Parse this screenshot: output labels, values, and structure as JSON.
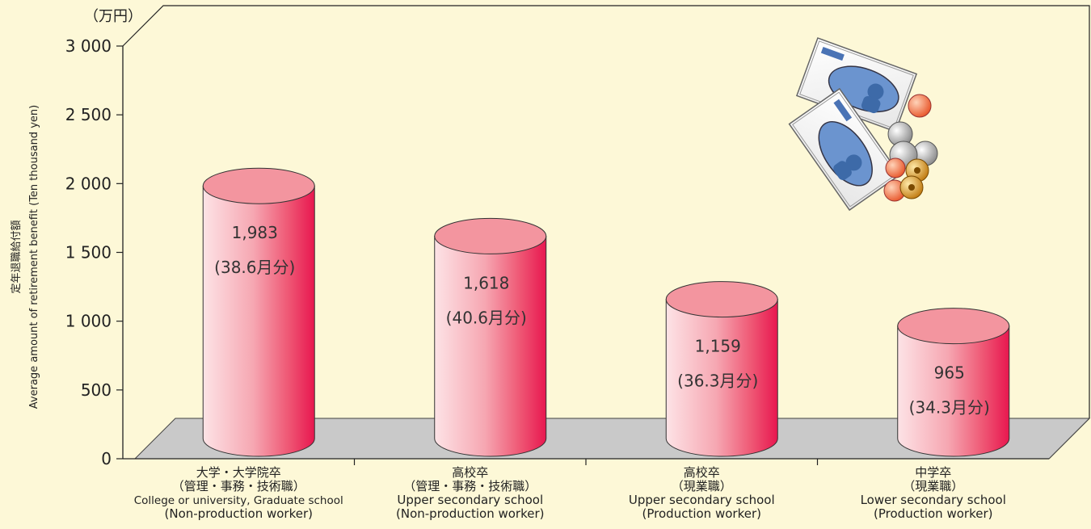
{
  "chart_data": {
    "type": "bar",
    "unit_label": "（万円）",
    "ylabel_jp": "定年退職給付額",
    "ylabel_en": "Average amount of retirement benefit (Ten thousand yen)",
    "ylim": [
      0,
      3000
    ],
    "yticks": [
      0,
      500,
      1000,
      1500,
      2000,
      2500,
      3000
    ],
    "ytick_labels": [
      "0",
      "500",
      "1 000",
      "1 500",
      "2 000",
      "2 500",
      "3 000"
    ],
    "categories": [
      {
        "jp": "大学・大学院卒",
        "jp2": "（管理・事務・技術職）",
        "en": "College or university, Graduate school",
        "en2": "(Non-production worker)"
      },
      {
        "jp": "高校卒",
        "jp2": "（管理・事務・技術職）",
        "en": "Upper secondary school",
        "en2": "(Non-production worker)"
      },
      {
        "jp": "高校卒",
        "jp2": "（現業職）",
        "en": "Upper secondary school",
        "en2": "(Production worker)"
      },
      {
        "jp": "中学卒",
        "jp2": "（現業職）",
        "en": "Lower secondary school",
        "en2": "(Production worker)"
      }
    ],
    "values": [
      1983,
      1618,
      1159,
      965
    ],
    "value_labels": [
      "1,983",
      "1,618",
      "1,159",
      "965"
    ],
    "months_labels": [
      "(38.6月分)",
      "(40.6月分)",
      "(36.3月分)",
      "(34.3月分)"
    ],
    "bar_color": "#e8174f",
    "bar_highlight": "#fde3e6",
    "top_color": "#f3959f",
    "floor_color": "#c9c9c9",
    "grid": false
  }
}
